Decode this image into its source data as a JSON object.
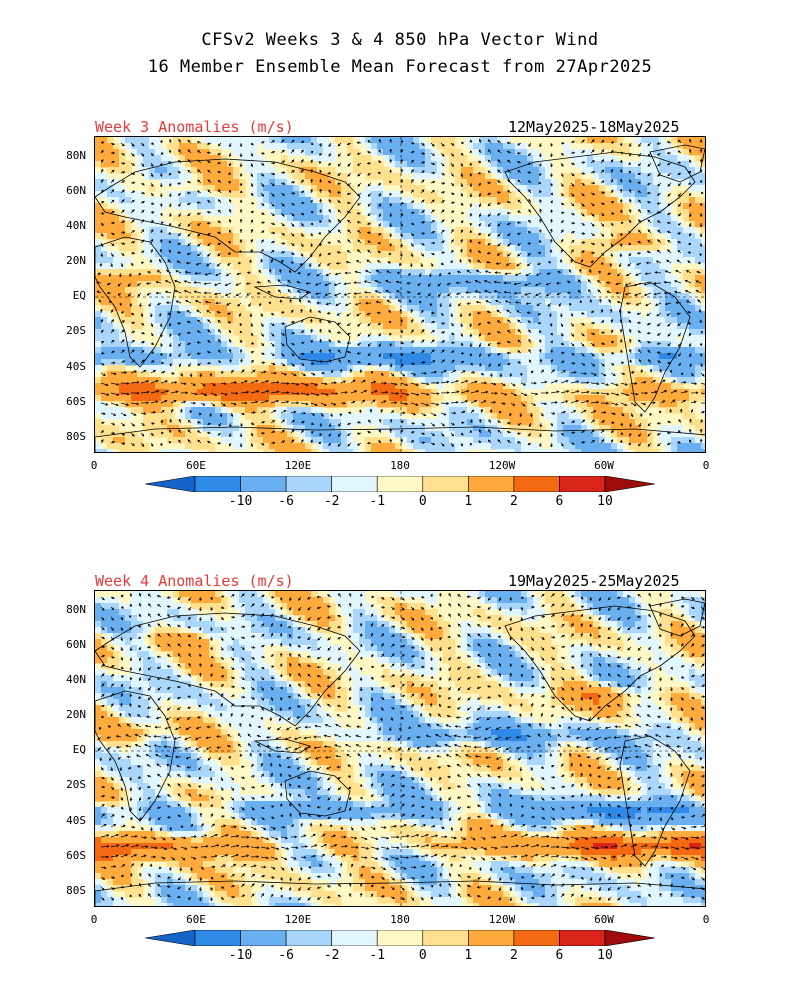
{
  "header": {
    "title1": "CFSv2 Weeks 3 & 4 850 hPa Vector Wind",
    "title2": "16 Member Ensemble Mean Forecast from 27Apr2025"
  },
  "panels": [
    {
      "label": "Week 3 Anomalies (m/s)",
      "dates": "12May2025-18May2025"
    },
    {
      "label": "Week 4 Anomalies (m/s)",
      "dates": "19May2025-25May2025"
    }
  ],
  "axes": {
    "lat_labels": [
      "80N",
      "60N",
      "40N",
      "20N",
      "EQ",
      "20S",
      "40S",
      "60S",
      "80S"
    ],
    "lon_labels": [
      "0",
      "60E",
      "120E",
      "180",
      "120W",
      "60W",
      "0"
    ]
  },
  "colorbar": {
    "labels": [
      "-10",
      "-6",
      "-2",
      "-1",
      "0",
      "1",
      "2",
      "6",
      "10"
    ],
    "colors": [
      "#1764c8",
      "#2e8ae6",
      "#6ab0f0",
      "#a9d6fa",
      "#e1f6ff",
      "#fff8c4",
      "#ffe08e",
      "#ffaa3c",
      "#f36a12",
      "#d8241a",
      "#9e0c0c"
    ]
  },
  "colors": {
    "label_red": "#e8383a",
    "land_outline": "#000000",
    "vector": "#000000"
  }
}
